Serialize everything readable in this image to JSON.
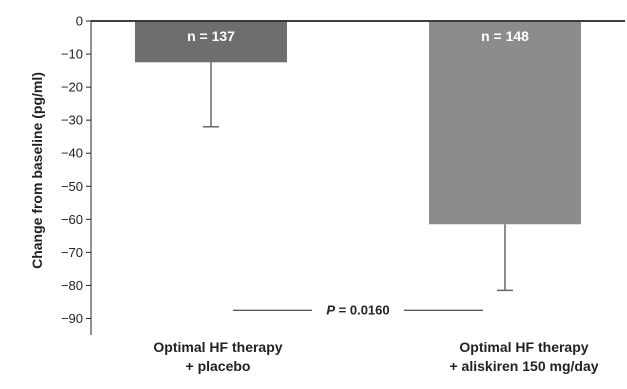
{
  "chart_data": {
    "type": "bar",
    "ylabel": "Change from baseline (pg/ml)",
    "ylim": [
      -95,
      0
    ],
    "yticks": [
      0,
      -10,
      -20,
      -30,
      -40,
      -50,
      -60,
      -70,
      -80,
      -90
    ],
    "ytick_labels": [
      "0",
      "−10",
      "−20",
      "−30",
      "−40",
      "−50",
      "−60",
      "−70",
      "−80",
      "−90"
    ],
    "categories": [
      [
        "Optimal HF therapy",
        "+ placebo"
      ],
      [
        "Optimal HF therapy",
        "+ aliskiren 150 mg/day"
      ]
    ],
    "values": [
      -12.5,
      -61.5
    ],
    "error_low": [
      -32,
      -81.5
    ],
    "n_labels": [
      "n = 137",
      "n = 148"
    ],
    "bar_colors": [
      "#6e6e6e",
      "#8c8c8c"
    ],
    "annotation": {
      "p_symbol": "P",
      "p_text": " = 0.0160",
      "y": -87.5
    },
    "grid": false,
    "legend": "none"
  }
}
